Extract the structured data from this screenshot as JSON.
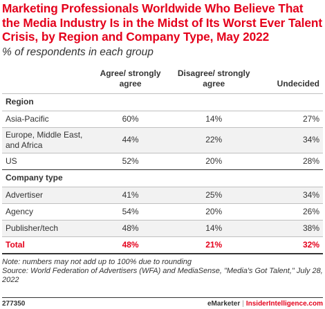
{
  "title": "Marketing Professionals Worldwide Who Believe That the Media Industry Is in the Midst of Its Worst Ever Talent Crisis, by Region and Company Type, May 2022",
  "subtitle": "% of respondents in each group",
  "columns": [
    "",
    "Agree/ strongly agree",
    "Disagree/ strongly agree",
    "Undecided"
  ],
  "sections": [
    {
      "label": "Region",
      "rows": [
        {
          "label": "Asia-Pacific",
          "values": [
            "60%",
            "14%",
            "27%"
          ]
        },
        {
          "label": "Europe, Middle East, and Africa",
          "values": [
            "44%",
            "22%",
            "34%"
          ]
        },
        {
          "label": "US",
          "values": [
            "52%",
            "20%",
            "28%"
          ]
        }
      ]
    },
    {
      "label": "Company type",
      "rows": [
        {
          "label": "Advertiser",
          "values": [
            "41%",
            "25%",
            "34%"
          ]
        },
        {
          "label": "Agency",
          "values": [
            "54%",
            "20%",
            "26%"
          ]
        },
        {
          "label": "Publisher/tech",
          "values": [
            "48%",
            "14%",
            "38%"
          ]
        }
      ]
    }
  ],
  "total": {
    "label": "Total",
    "values": [
      "48%",
      "21%",
      "32%"
    ]
  },
  "note": "Note: numbers may not add up to 100% due to rounding",
  "source": "Source: World Federation of Advertisers (WFA) and MediaSense, \"Media's Got Talent,\" July 28, 2022",
  "footer": {
    "code": "277350",
    "brand_left": "eMarketer",
    "separator": "|",
    "brand_right": "InsiderIntelligence.com"
  },
  "colors": {
    "accent": "#e4001b",
    "text": "#333333",
    "rule": "#bfbfbf"
  },
  "chart_data": {
    "type": "table",
    "title": "Marketing Professionals Worldwide Who Believe That the Media Industry Is in the Midst of Its Worst Ever Talent Crisis, by Region and Company Type, May 2022",
    "subtitle": "% of respondents in each group",
    "columns": [
      "Agree/ strongly agree",
      "Disagree/ strongly agree",
      "Undecided"
    ],
    "rows": [
      {
        "group": "Region",
        "label": "Asia-Pacific",
        "values": [
          60,
          14,
          27
        ]
      },
      {
        "group": "Region",
        "label": "Europe, Middle East, and Africa",
        "values": [
          44,
          22,
          34
        ]
      },
      {
        "group": "Region",
        "label": "US",
        "values": [
          52,
          20,
          28
        ]
      },
      {
        "group": "Company type",
        "label": "Advertiser",
        "values": [
          41,
          25,
          34
        ]
      },
      {
        "group": "Company type",
        "label": "Agency",
        "values": [
          54,
          20,
          26
        ]
      },
      {
        "group": "Company type",
        "label": "Publisher/tech",
        "values": [
          48,
          14,
          38
        ]
      },
      {
        "group": "",
        "label": "Total",
        "values": [
          48,
          21,
          32
        ]
      }
    ]
  }
}
